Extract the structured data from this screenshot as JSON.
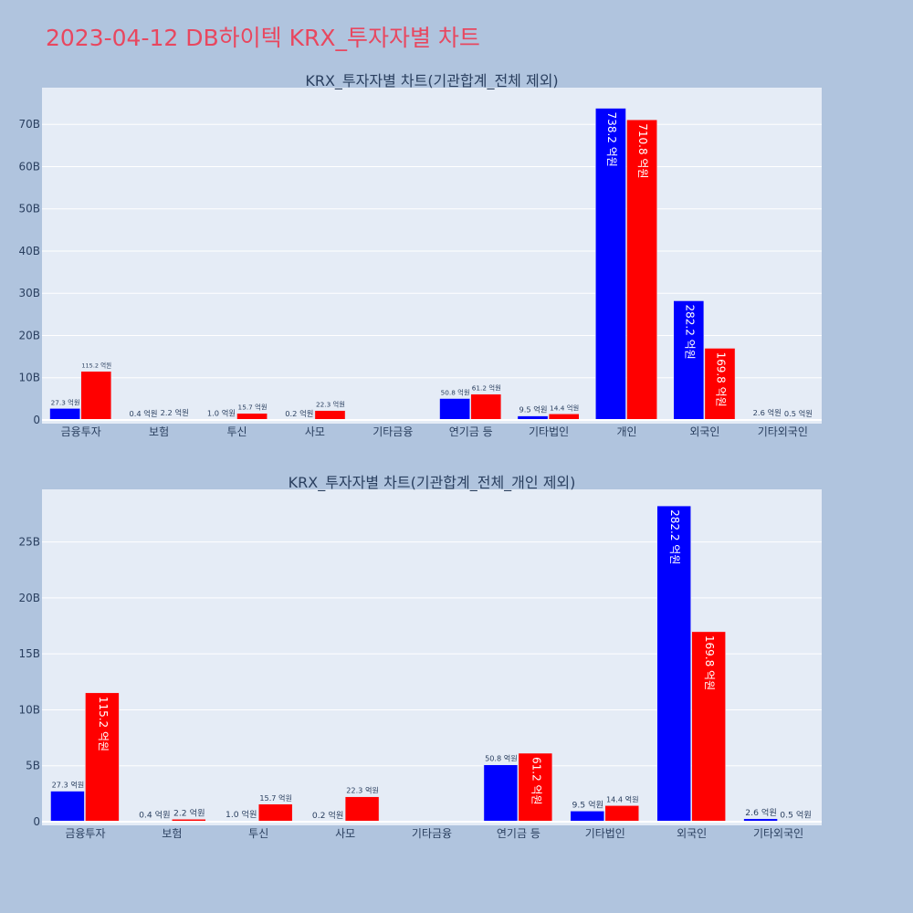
{
  "title": "2023-04-12 DB하이텍 KRX_투자자별 차트",
  "colors": {
    "background": "#b0c4de",
    "plot_bg": "#e5ecf6",
    "title": "#e8475f",
    "buy": "#0000ff",
    "sell": "#ff0000"
  },
  "chart_data": [
    {
      "type": "bar",
      "title": "KRX_투자자별 차트(기관합계_전체 제외)",
      "categories": [
        "금융투자",
        "보험",
        "투신",
        "사모",
        "기타금융",
        "연기금 등",
        "기타법인",
        "개인",
        "외국인",
        "기타외국인"
      ],
      "series": [
        {
          "color": "#0000ff",
          "values": [
            2730000000,
            40000000,
            100000000,
            20000000,
            0,
            5080000000,
            950000000,
            73820000000,
            28220000000,
            260000000
          ],
          "labels": [
            "27.3 억원",
            "0.4 억원",
            "1.0 억원",
            "0.2 억원",
            "",
            "50.8 억원",
            "9.5 억원",
            "738.2 억원",
            "282.2 억원",
            "2.6 억원"
          ]
        },
        {
          "color": "#ff0000",
          "values": [
            11520000000,
            220000000,
            1570000000,
            2230000000,
            0,
            6120000000,
            1440000000,
            71080000000,
            16980000000,
            50000000
          ],
          "labels": [
            "115.2 억원",
            "2.2 억원",
            "15.7 억원",
            "22.3 억원",
            "",
            "61.2 억원",
            "14.4 억원",
            "710.8 억원",
            "169.8 억원",
            "0.5 억원"
          ]
        }
      ],
      "yticks": [
        0,
        10000000000,
        20000000000,
        30000000000,
        40000000000,
        50000000000,
        60000000000,
        70000000000
      ],
      "ytick_labels": [
        "0",
        "10B",
        "20B",
        "30B",
        "40B",
        "50B",
        "60B",
        "70B"
      ],
      "ylim": [
        0,
        78700000000
      ],
      "grid": true
    },
    {
      "type": "bar",
      "title": "KRX_투자자별 차트(기관합계_전체_개인 제외)",
      "categories": [
        "금융투자",
        "보험",
        "투신",
        "사모",
        "기타금융",
        "연기금 등",
        "기타법인",
        "외국인",
        "기타외국인"
      ],
      "series": [
        {
          "color": "#0000ff",
          "values": [
            2730000000,
            40000000,
            100000000,
            20000000,
            0,
            5080000000,
            950000000,
            28220000000,
            260000000
          ],
          "labels": [
            "27.3 억원",
            "0.4 억원",
            "1.0 억원",
            "0.2 억원",
            "",
            "50.8 억원",
            "9.5 억원",
            "282.2 억원",
            "2.6 억원"
          ]
        },
        {
          "color": "#ff0000",
          "values": [
            11520000000,
            220000000,
            1570000000,
            2230000000,
            0,
            6120000000,
            1440000000,
            16980000000,
            50000000
          ],
          "labels": [
            "115.2 억원",
            "2.2 억원",
            "15.7 억원",
            "22.3 억원",
            "",
            "61.2 억원",
            "14.4 억원",
            "169.8 억원",
            "0.5 억원"
          ]
        }
      ],
      "yticks": [
        0,
        5000000000,
        10000000000,
        15000000000,
        20000000000,
        25000000000
      ],
      "ytick_labels": [
        "0",
        "5B",
        "10B",
        "15B",
        "20B",
        "25B"
      ],
      "ylim": [
        0,
        29700000000
      ],
      "grid": true
    }
  ]
}
